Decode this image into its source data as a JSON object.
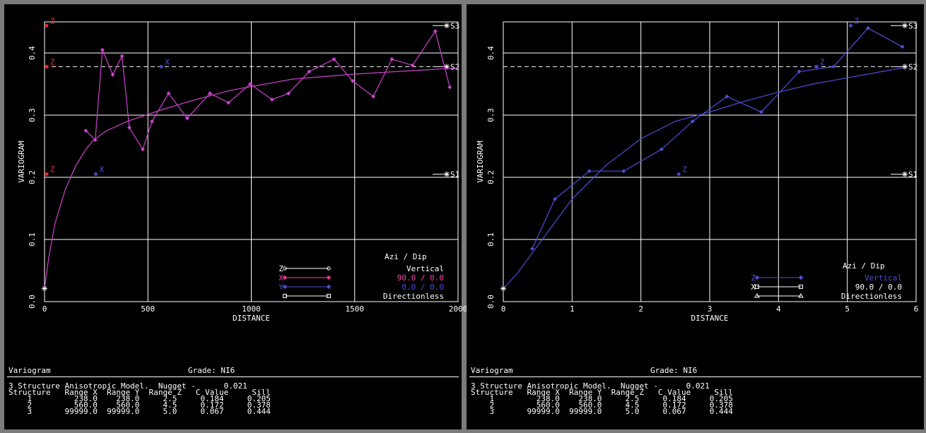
{
  "chart_data": [
    {
      "type": "line",
      "xlabel": "DISTANCE",
      "ylabel": "VARIOGRAM",
      "xlim": [
        0,
        2000
      ],
      "ylim": [
        0,
        0.45
      ],
      "x_ticks": [
        "0",
        "500",
        "1000",
        "1500",
        "2000"
      ],
      "y_ticks": [
        "0.0",
        "0.1",
        "0.2",
        "0.3",
        "0.4"
      ],
      "grid": true,
      "legend": {
        "position": "bottom-right",
        "header": "Azi /   Dip",
        "entries": [
          {
            "key": "Z",
            "text": "Vertical",
            "color": "#ffffff",
            "marker": "circle"
          },
          {
            "key": "X",
            "text": "90.0 /   0.0",
            "color": "#ff3fa8",
            "marker": "star"
          },
          {
            "key": "Y",
            "text": "0.0 /   0.0",
            "color": "#4f4fd6",
            "marker": "diamond"
          },
          {
            "key": "",
            "text": "Directionless",
            "color": "#ffffff",
            "marker": "square"
          }
        ]
      },
      "sill_line": 0.378,
      "structure_markers": [
        {
          "label": "S1",
          "y": 0.205
        },
        {
          "label": "S2",
          "y": 0.378
        },
        {
          "label": "S3",
          "y": 0.444
        }
      ],
      "series": [
        {
          "color": "#cc44cc",
          "style": "experimental",
          "x": [
            200,
            245,
            280,
            330,
            375,
            410,
            475,
            520,
            600,
            690,
            800,
            890,
            995,
            1100,
            1180,
            1280,
            1400,
            1490,
            1590,
            1680,
            1780,
            1890,
            1960
          ],
          "y": [
            0.275,
            0.26,
            0.405,
            0.365,
            0.395,
            0.28,
            0.245,
            0.29,
            0.335,
            0.295,
            0.335,
            0.32,
            0.35,
            0.325,
            0.335,
            0.37,
            0.39,
            0.355,
            0.33,
            0.39,
            0.38,
            0.435,
            0.345
          ]
        },
        {
          "color": "#cc44cc",
          "style": "model",
          "x": [
            0,
            20,
            50,
            100,
            150,
            200,
            238,
            300,
            400,
            560,
            700,
            900,
            1200,
            1500,
            1800,
            2000
          ],
          "y": [
            0.021,
            0.07,
            0.125,
            0.18,
            0.218,
            0.245,
            0.26,
            0.275,
            0.29,
            0.308,
            0.322,
            0.34,
            0.358,
            0.366,
            0.372,
            0.376
          ]
        }
      ],
      "annotations": [
        {
          "label": "Z",
          "x": 10,
          "y": 0.444,
          "color": "#ff3030"
        },
        {
          "label": "Z",
          "x": 10,
          "y": 0.378,
          "color": "#ff3030"
        },
        {
          "label": "Z",
          "x": 10,
          "y": 0.205,
          "color": "#ff3030"
        },
        {
          "label": "X",
          "x": 248,
          "y": 0.205,
          "color": "#4f4fd6"
        },
        {
          "label": "X",
          "x": 565,
          "y": 0.378,
          "color": "#4f4fd6"
        }
      ],
      "origin_marker": {
        "x": 0,
        "y": 0.021
      }
    },
    {
      "type": "line",
      "xlabel": "DISTANCE",
      "ylabel": "VARIOGRAM",
      "xlim": [
        0,
        6
      ],
      "ylim": [
        0,
        0.45
      ],
      "x_ticks": [
        "0",
        "1",
        "2",
        "3",
        "4",
        "5",
        "6"
      ],
      "y_ticks": [
        "0.0",
        "0.1",
        "0.2",
        "0.3",
        "0.4"
      ],
      "grid": true,
      "legend": {
        "position": "bottom-right",
        "header": "Azi /   Dip",
        "entries": [
          {
            "key": "Z",
            "text": "Vertical",
            "color": "#4f4fd6",
            "marker": "diamond"
          },
          {
            "key": "X",
            "text": "90.0 /   0.0",
            "color": "#ffffff",
            "marker": "square"
          },
          {
            "key": "",
            "text": "Directionless",
            "color": "#ffffff",
            "marker": "triangle"
          }
        ]
      },
      "sill_line": 0.378,
      "structure_markers": [
        {
          "label": "S1",
          "y": 0.205
        },
        {
          "label": "S2",
          "y": 0.378
        },
        {
          "label": "S3",
          "y": 0.444
        }
      ],
      "series": [
        {
          "color": "#4f4fd6",
          "style": "experimental",
          "x": [
            0.42,
            0.75,
            1.25,
            1.75,
            2.3,
            2.75,
            3.25,
            3.75,
            4.3,
            4.8,
            5.3,
            5.8
          ],
          "y": [
            0.085,
            0.165,
            0.21,
            0.21,
            0.245,
            0.29,
            0.33,
            0.305,
            0.37,
            0.378,
            0.44,
            0.41
          ]
        },
        {
          "color": "#4f4fd6",
          "style": "model",
          "x": [
            0,
            0.2,
            0.5,
            1.0,
            1.5,
            2.0,
            2.5,
            3.0,
            3.5,
            4.0,
            4.5,
            5.0,
            5.5,
            5.8
          ],
          "y": [
            0.021,
            0.045,
            0.09,
            0.165,
            0.22,
            0.262,
            0.29,
            0.305,
            0.322,
            0.337,
            0.35,
            0.36,
            0.37,
            0.376
          ]
        }
      ],
      "annotations": [
        {
          "label": "Z",
          "x": 2.55,
          "y": 0.205,
          "color": "#4f4fd6"
        },
        {
          "label": "Z",
          "x": 4.55,
          "y": 0.378,
          "color": "#4f4fd6"
        },
        {
          "label": "Z",
          "x": 5.05,
          "y": 0.444,
          "color": "#4f4fd6"
        }
      ],
      "origin_marker": {
        "x": 0,
        "y": 0.021
      }
    }
  ],
  "info": {
    "title": "Variogram",
    "grade": "Grade: NI6",
    "model": "3 Structure Anisotropic Model.  Nugget -      0.021",
    "header": "Structure   Range X  Range Y  Range Z   C Value     Sill",
    "rows": [
      "    1         238.0    238.0     2.5     0.184     0.205",
      "    2         560.0    560.0     4.5     0.172     0.378",
      "    3       99999.0  99999.0     5.0     0.067     0.444"
    ]
  }
}
